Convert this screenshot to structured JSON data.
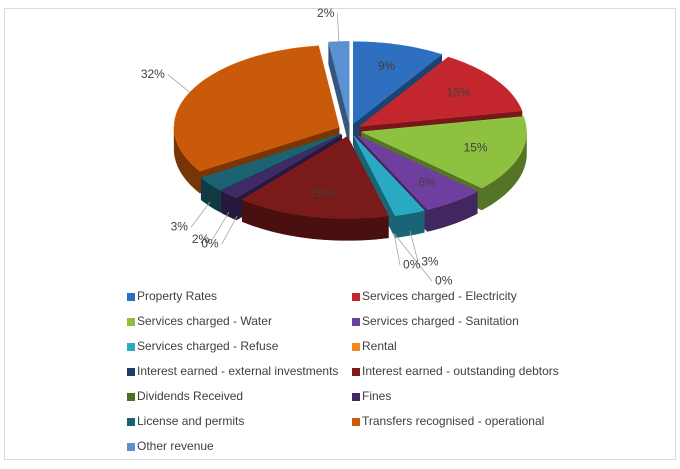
{
  "chart_data": {
    "type": "pie3d",
    "categories": [
      "Property Rates",
      "Services charged - Electricity",
      "Services charged - Water",
      "Services charged - Sanitation",
      "Services charged - Refuse",
      "Rental",
      "Interest earned - external investments",
      "Interest earned - outstanding debtors",
      "Dividends Received",
      "Fines",
      "License and permits",
      "Transfers recognised - operational",
      "Other revenue"
    ],
    "values": [
      9,
      13,
      15,
      6,
      3,
      0,
      0,
      15,
      0,
      2,
      3,
      32,
      2
    ],
    "value_labels": [
      "9%",
      "13%",
      "15%",
      "6%",
      "3%",
      "0%",
      "0%",
      "15%",
      "0%",
      "2%",
      "3%",
      "32%",
      "2%"
    ],
    "colors": [
      "#2f6fbf",
      "#c3272d",
      "#8dc13f",
      "#6e3f9f",
      "#2aa9c5",
      "#f28a1c",
      "#1f3b6c",
      "#7b1a1a",
      "#4f6e1f",
      "#3f2a67",
      "#1b6272",
      "#c85a0a",
      "#5b90d2"
    ],
    "legend": "bottom"
  }
}
